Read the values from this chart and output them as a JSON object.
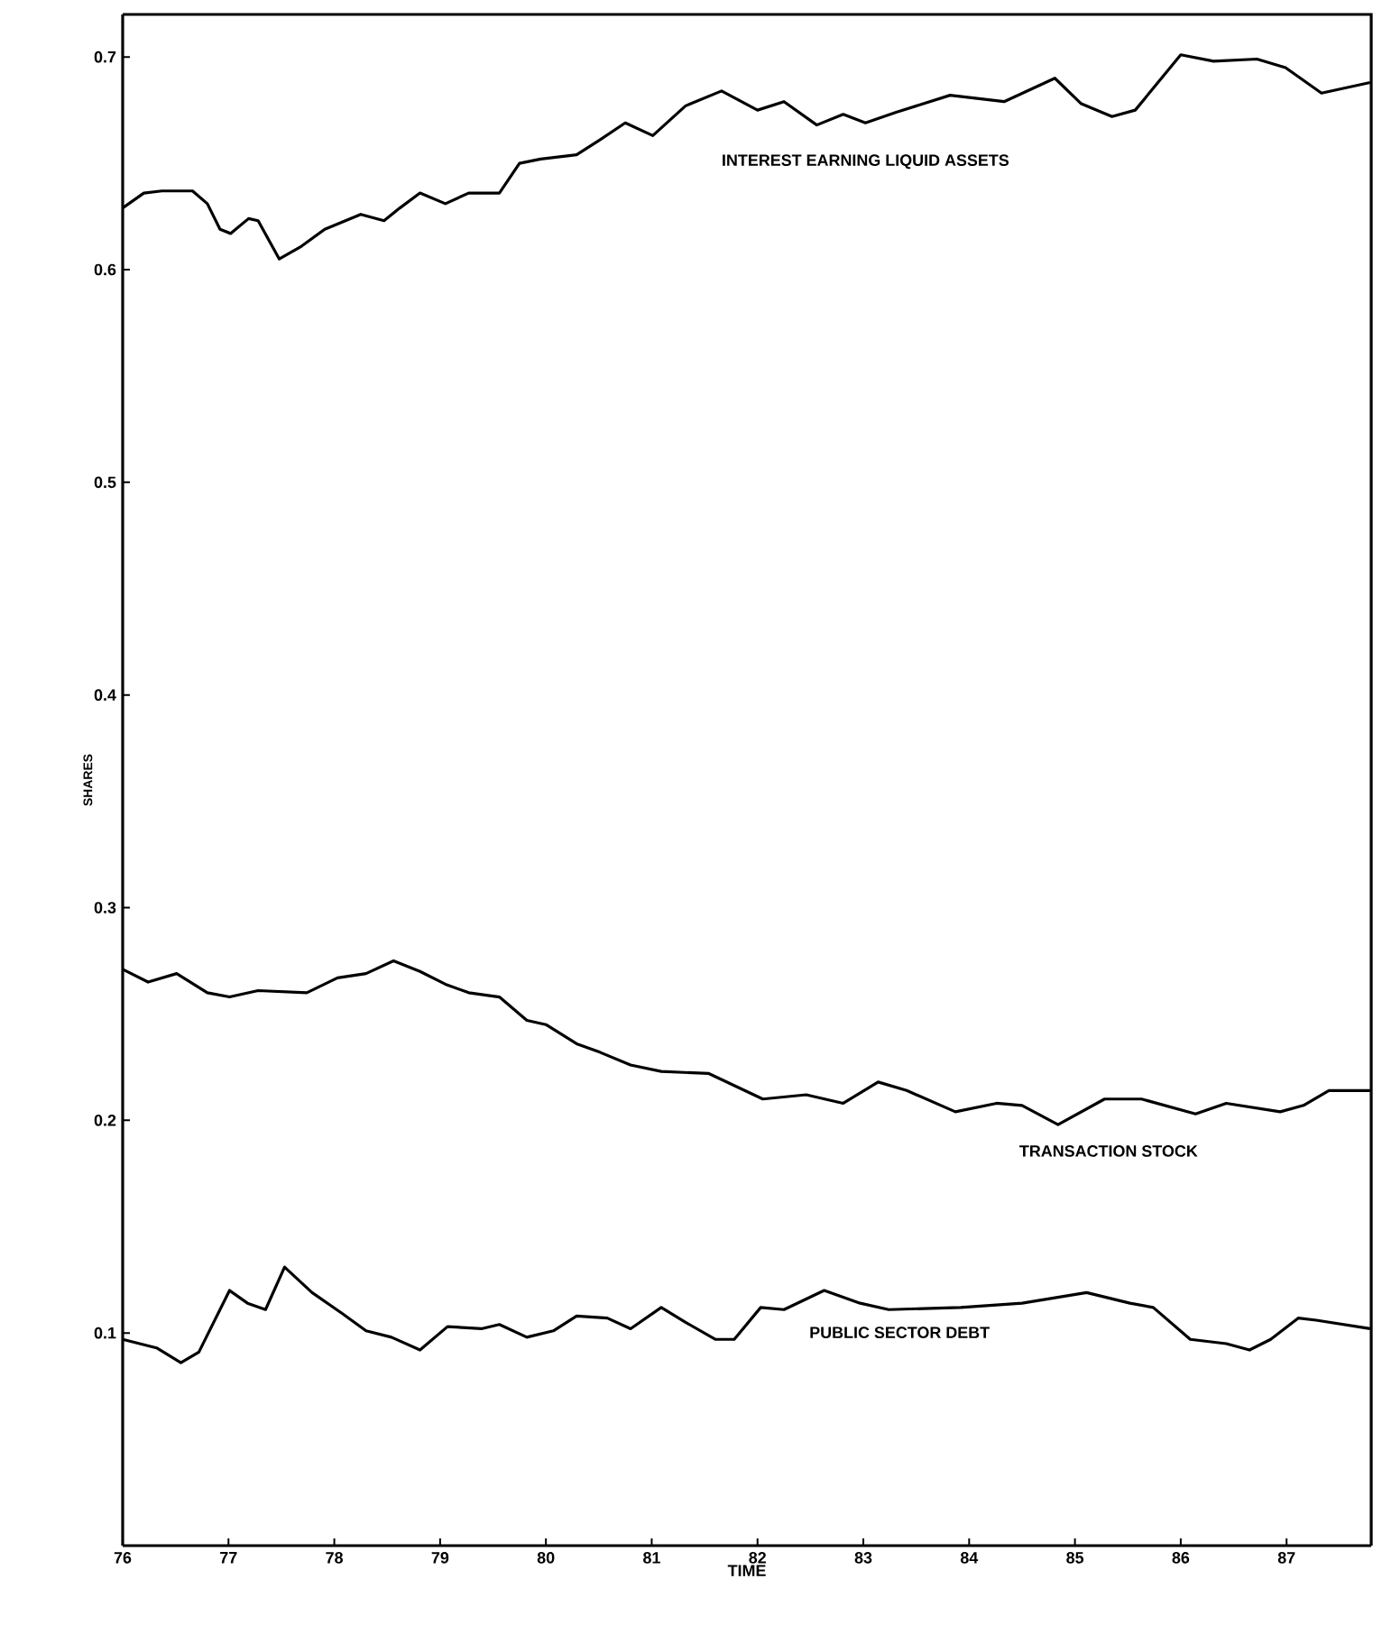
{
  "chart_data": {
    "type": "line",
    "xlabel": "TIME",
    "ylabel": "SHARES",
    "xlim": [
      76,
      87.8
    ],
    "xticks": [
      76,
      77,
      78,
      79,
      80,
      81,
      82,
      83,
      84,
      85,
      86,
      87
    ],
    "ylim": [
      0,
      0.72
    ],
    "yticks": [
      0.1,
      0.2,
      0.3,
      0.4,
      0.5,
      0.6,
      0.7
    ],
    "grid": false,
    "legend": false,
    "marker": "none",
    "line_style": "solid",
    "series": [
      {
        "name": "INTEREST EARNING LIQUID ASSETS",
        "color": "#000000",
        "x": [
          76.0,
          76.2,
          76.37,
          76.66,
          76.8,
          76.92,
          77.02,
          77.19,
          77.28,
          77.48,
          77.69,
          77.91,
          78.25,
          78.47,
          78.62,
          78.81,
          79.05,
          79.27,
          79.56,
          79.75,
          79.95,
          80.29,
          80.51,
          80.75,
          81.01,
          81.32,
          81.66,
          82.0,
          82.25,
          82.56,
          82.81,
          83.02,
          83.31,
          83.82,
          84.33,
          84.81,
          85.06,
          85.35,
          85.57,
          86.0,
          86.31,
          86.72,
          86.99,
          87.33,
          87.79
        ],
        "values": [
          0.629,
          0.636,
          0.637,
          0.637,
          0.631,
          0.619,
          0.617,
          0.624,
          0.623,
          0.605,
          0.611,
          0.619,
          0.626,
          0.623,
          0.629,
          0.636,
          0.631,
          0.636,
          0.636,
          0.65,
          0.652,
          0.654,
          0.661,
          0.669,
          0.663,
          0.677,
          0.684,
          0.675,
          0.679,
          0.668,
          0.673,
          0.669,
          0.674,
          0.682,
          0.679,
          0.69,
          0.678,
          0.672,
          0.675,
          0.701,
          0.698,
          0.699,
          0.695,
          0.683,
          0.688
        ]
      },
      {
        "name": "TRANSACTION STOCK",
        "color": "#000000",
        "x": [
          76.0,
          76.24,
          76.51,
          76.8,
          77.01,
          77.28,
          77.74,
          78.03,
          78.3,
          78.56,
          78.81,
          79.05,
          79.27,
          79.56,
          79.82,
          80.0,
          80.29,
          80.51,
          80.8,
          81.09,
          81.54,
          82.05,
          82.46,
          82.81,
          83.14,
          83.41,
          83.87,
          84.26,
          84.5,
          84.84,
          85.28,
          85.63,
          86.14,
          86.43,
          86.94,
          87.16,
          87.4,
          87.79
        ],
        "values": [
          0.271,
          0.265,
          0.269,
          0.26,
          0.258,
          0.261,
          0.26,
          0.267,
          0.269,
          0.275,
          0.27,
          0.264,
          0.26,
          0.258,
          0.247,
          0.245,
          0.236,
          0.232,
          0.226,
          0.223,
          0.222,
          0.21,
          0.212,
          0.208,
          0.218,
          0.214,
          0.204,
          0.208,
          0.207,
          0.198,
          0.21,
          0.21,
          0.203,
          0.208,
          0.204,
          0.207,
          0.214,
          0.214
        ]
      },
      {
        "name": "PUBLIC SECTOR DEBT",
        "color": "#000000",
        "x": [
          76.0,
          76.32,
          76.55,
          76.72,
          77.01,
          77.18,
          77.35,
          77.53,
          77.79,
          78.08,
          78.3,
          78.54,
          78.81,
          79.07,
          79.39,
          79.56,
          79.82,
          80.07,
          80.29,
          80.58,
          80.8,
          81.09,
          81.32,
          81.6,
          81.78,
          82.03,
          82.25,
          82.63,
          82.97,
          83.24,
          83.92,
          84.5,
          85.11,
          85.52,
          85.74,
          86.09,
          86.43,
          86.65,
          86.85,
          87.11,
          87.28,
          87.79
        ],
        "values": [
          0.097,
          0.093,
          0.086,
          0.091,
          0.12,
          0.114,
          0.111,
          0.131,
          0.119,
          0.109,
          0.101,
          0.098,
          0.092,
          0.103,
          0.102,
          0.104,
          0.098,
          0.101,
          0.108,
          0.107,
          0.102,
          0.112,
          0.105,
          0.097,
          0.097,
          0.112,
          0.111,
          0.12,
          0.114,
          0.111,
          0.112,
          0.114,
          0.119,
          0.114,
          0.112,
          0.097,
          0.095,
          0.092,
          0.097,
          0.107,
          0.106,
          0.102
        ]
      }
    ]
  }
}
